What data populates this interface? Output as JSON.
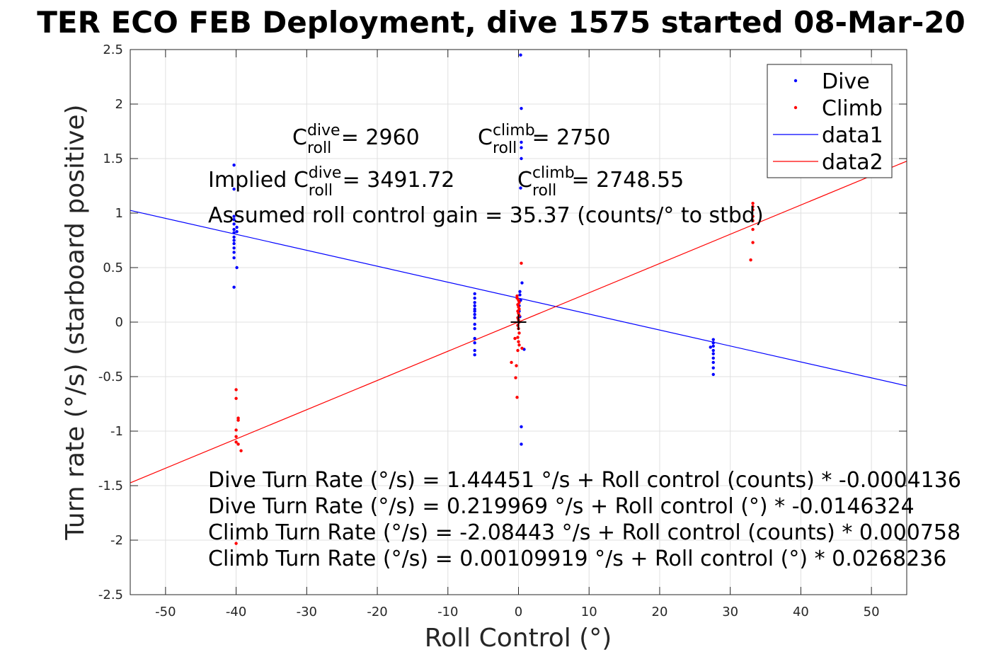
{
  "chart_data": {
    "type": "scatter",
    "title": "TER ECO FEB Deployment, dive 1575 started 08-Mar-20",
    "xlabel": "Roll Control (°)",
    "ylabel": "Turn rate (°/s) (starboard positive)",
    "xlim": [
      -55,
      55
    ],
    "ylim": [
      -2.5,
      2.5
    ],
    "xticks": [
      -50,
      -40,
      -30,
      -20,
      -10,
      0,
      10,
      20,
      30,
      40,
      50
    ],
    "xtick_labels": [
      "-50",
      "-40",
      "-30",
      "-20",
      "-10",
      "0",
      "10",
      "20",
      "30",
      "40",
      "50"
    ],
    "yticks": [
      -2.5,
      -2,
      -1.5,
      -1,
      -0.5,
      0,
      0.5,
      1,
      1.5,
      2,
      2.5
    ],
    "ytick_labels": [
      "-2.5",
      "-2",
      "-1.5",
      "-1",
      "-0.5",
      "0",
      "0.5",
      "1",
      "1.5",
      "2",
      "2.5"
    ],
    "grid": true,
    "legend_position": "top-right",
    "legend": [
      {
        "label": "Dive",
        "kind": "marker",
        "color": "#0000ff"
      },
      {
        "label": "Climb",
        "kind": "marker",
        "color": "#ff0000"
      },
      {
        "label": "data1",
        "kind": "line",
        "color": "#0000ff"
      },
      {
        "label": "data2",
        "kind": "line",
        "color": "#ff0000"
      }
    ],
    "series": [
      {
        "name": "Dive",
        "color": "#0000ff",
        "points": [
          [
            -40.3,
            1.44
          ],
          [
            -40.3,
            1.22
          ],
          [
            -40.3,
            0.97
          ],
          [
            -40.3,
            0.94
          ],
          [
            -40.3,
            0.9
          ],
          [
            -40.3,
            0.85
          ],
          [
            -40.3,
            0.82
          ],
          [
            -40.3,
            0.78
          ],
          [
            -40.3,
            0.75
          ],
          [
            -40.3,
            0.72
          ],
          [
            -40.3,
            0.68
          ],
          [
            -40.3,
            0.64
          ],
          [
            -40.3,
            0.59
          ],
          [
            -40.3,
            0.32
          ],
          [
            -39.9,
            0.5
          ],
          [
            -39.9,
            0.83
          ],
          [
            -39.9,
            0.87
          ],
          [
            -6.2,
            0.26
          ],
          [
            -6.2,
            0.22
          ],
          [
            -6.2,
            0.18
          ],
          [
            -6.2,
            0.15
          ],
          [
            -6.2,
            0.12
          ],
          [
            -6.2,
            0.1
          ],
          [
            -6.2,
            0.07
          ],
          [
            -6.2,
            0.04
          ],
          [
            -6.2,
            -0.02
          ],
          [
            -6.2,
            -0.06
          ],
          [
            -6.2,
            -0.15
          ],
          [
            -6.2,
            -0.19
          ],
          [
            -6.2,
            -0.26
          ],
          [
            -6.2,
            -0.3
          ],
          [
            0.3,
            2.45
          ],
          [
            0.4,
            1.96
          ],
          [
            0.4,
            1.65
          ],
          [
            0.4,
            1.6
          ],
          [
            0.4,
            1.5
          ],
          [
            0.3,
            1.23
          ],
          [
            0.2,
            0.28
          ],
          [
            0.2,
            0.25
          ],
          [
            0.5,
            0.36
          ],
          [
            0.3,
            0.2
          ],
          [
            0.1,
            0.15
          ],
          [
            0.1,
            0.1
          ],
          [
            0.2,
            0.05
          ],
          [
            0.8,
            -0.25
          ],
          [
            0.4,
            -0.96
          ],
          [
            0.4,
            -1.12
          ],
          [
            27.6,
            -0.16
          ],
          [
            27.6,
            -0.19
          ],
          [
            27.6,
            -0.22
          ],
          [
            27.6,
            -0.26
          ],
          [
            27.6,
            -0.29
          ],
          [
            27.6,
            -0.33
          ],
          [
            27.6,
            -0.37
          ],
          [
            27.6,
            -0.42
          ],
          [
            27.6,
            -0.48
          ],
          [
            27.2,
            -0.23
          ]
        ]
      },
      {
        "name": "Climb",
        "color": "#ff0000",
        "points": [
          [
            -40.0,
            -0.62
          ],
          [
            -40.0,
            -0.7
          ],
          [
            -39.7,
            -0.88
          ],
          [
            -39.7,
            -0.9
          ],
          [
            -40.0,
            -0.99
          ],
          [
            -40.0,
            -1.05
          ],
          [
            -40.0,
            -1.1
          ],
          [
            -39.7,
            -1.12
          ],
          [
            -39.3,
            -1.18
          ],
          [
            -40.0,
            -2.03
          ],
          [
            -0.2,
            0.24
          ],
          [
            -0.2,
            0.22
          ],
          [
            0.0,
            0.2
          ],
          [
            0.1,
            0.18
          ],
          [
            -0.1,
            0.16
          ],
          [
            0.0,
            0.14
          ],
          [
            0.1,
            0.12
          ],
          [
            -0.1,
            0.1
          ],
          [
            0.0,
            0.08
          ],
          [
            0.1,
            0.06
          ],
          [
            -0.1,
            0.04
          ],
          [
            0.0,
            0.02
          ],
          [
            0.1,
            0.0
          ],
          [
            -0.1,
            -0.03
          ],
          [
            0.0,
            -0.06
          ],
          [
            0.1,
            -0.1
          ],
          [
            -0.1,
            -0.14
          ],
          [
            0.0,
            -0.18
          ],
          [
            0.1,
            -0.21
          ],
          [
            -0.1,
            -0.26
          ],
          [
            0.4,
            0.54
          ],
          [
            -1.0,
            -0.37
          ],
          [
            -0.3,
            -0.4
          ],
          [
            -0.4,
            -0.51
          ],
          [
            -0.2,
            -0.69
          ],
          [
            0.5,
            -0.24
          ],
          [
            -0.5,
            -0.15
          ],
          [
            33.2,
            1.09
          ],
          [
            33.2,
            1.06
          ],
          [
            33.2,
            1.03
          ],
          [
            33.2,
            0.97
          ],
          [
            33.2,
            0.93
          ],
          [
            33.2,
            0.85
          ],
          [
            33.2,
            0.73
          ],
          [
            32.9,
            0.57
          ]
        ]
      },
      {
        "name": "data1",
        "color": "#0000ff",
        "line": [
          [
            -55,
            1.0247
          ],
          [
            55,
            -0.5848
          ]
        ]
      },
      {
        "name": "data2",
        "color": "#ff0000",
        "line": [
          [
            -55,
            -1.4742
          ],
          [
            55,
            1.4764
          ]
        ]
      }
    ],
    "annotations": [
      {
        "id": "c_dive",
        "base": "C",
        "sup": "dive",
        "sub": "roll",
        "rest": " = 2960"
      },
      {
        "id": "c_climb",
        "base": "C",
        "sup": "climb",
        "sub": "roll",
        "rest": " = 2750"
      },
      {
        "id": "implied_dive",
        "prefix": "Implied ",
        "base": "C",
        "sup": "dive",
        "sub": "roll",
        "rest": " = 3491.72"
      },
      {
        "id": "implied_climb",
        "base": "C",
        "sup": "climb",
        "sub": "roll",
        "rest": " = 2748.55"
      },
      {
        "id": "gain",
        "text": "Assumed roll control gain = 35.37 (counts/° to stbd)"
      },
      {
        "id": "eq1",
        "text": "Dive Turn Rate (°/s) = 1.44451 °/s + Roll control (counts) * -0.0004136"
      },
      {
        "id": "eq2",
        "text": "Dive Turn Rate (°/s) = 0.219969 °/s + Roll control (°) * -0.0146324"
      },
      {
        "id": "eq3",
        "text": "Climb Turn Rate (°/s) = -2.08443 °/s + Roll control (counts) * 0.000758"
      },
      {
        "id": "eq4",
        "text": "Climb Turn Rate (°/s) = 0.00109919 °/s + Roll control (°) * 0.0268236"
      }
    ],
    "center_marker": {
      "x": 0,
      "y": 0,
      "symbol": "+",
      "color": "#000000"
    }
  }
}
